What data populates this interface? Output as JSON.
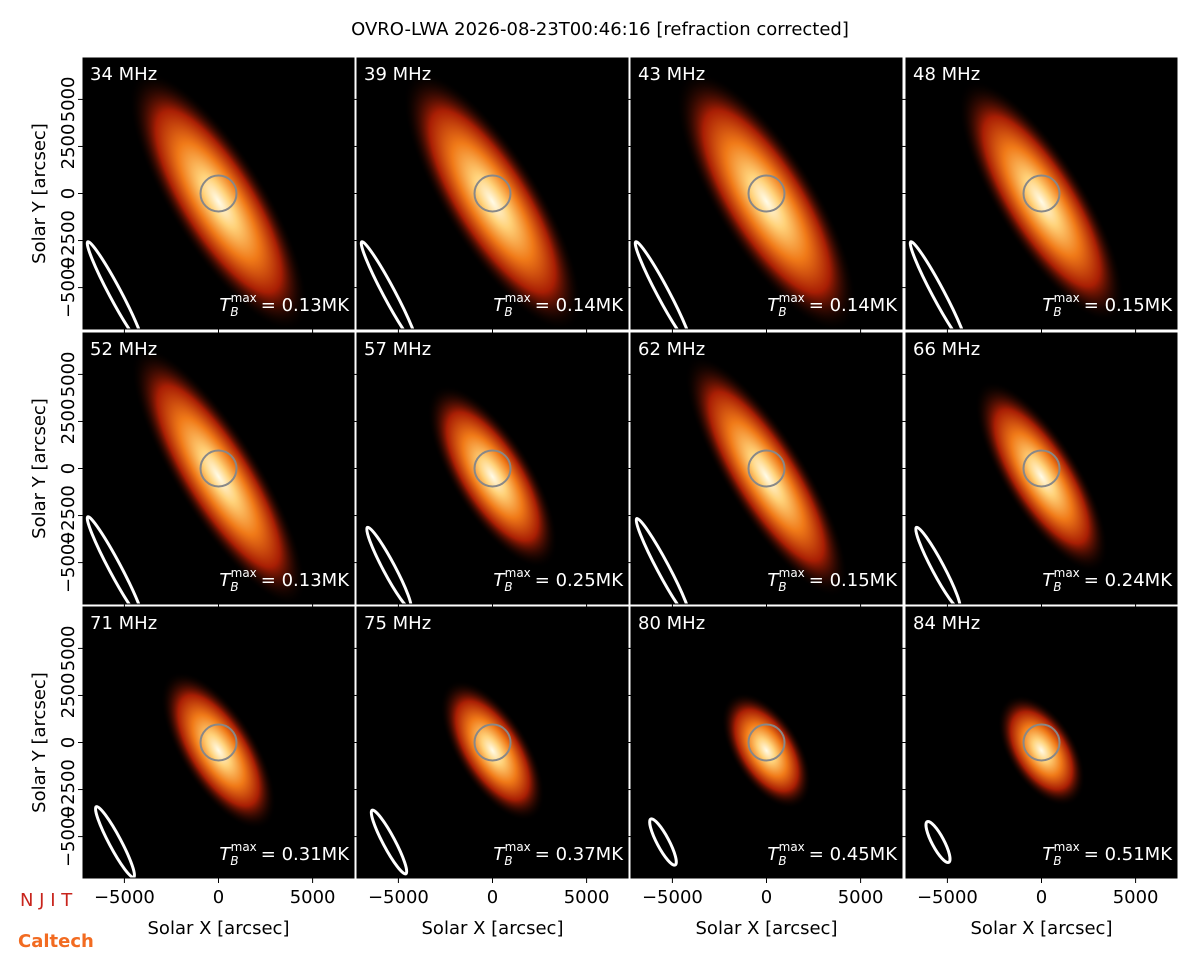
{
  "title": "OVRO-LWA 2026-08-23T00:46:16 [refraction corrected]",
  "axes": {
    "xlabel": "Solar X [arcsec]",
    "ylabel": "Solar Y [arcsec]",
    "xlim": [
      -7200,
      7200
    ],
    "ylim": [
      -7200,
      7200
    ],
    "xticks": [
      {
        "value": -5000,
        "label": "−5000"
      },
      0,
      5000
    ],
    "yticks": [
      {
        "value": -5000,
        "label": "−5000"
      },
      {
        "value": -2500,
        "label": "−2500"
      },
      0,
      2500,
      5000
    ]
  },
  "tb_symbol": {
    "base": "T",
    "sub": "B",
    "sup": "max"
  },
  "chart_data": [
    {
      "type": "image",
      "title": "34 MHz",
      "annotation": "= 0.13MK"
    },
    {
      "type": "image",
      "title": "39 MHz",
      "annotation": "= 0.14MK"
    },
    {
      "type": "image",
      "title": "43 MHz",
      "annotation": "= 0.14MK"
    },
    {
      "type": "image",
      "title": "48 MHz",
      "annotation": "= 0.15MK"
    },
    {
      "type": "image",
      "title": "52 MHz",
      "annotation": "= 0.13MK"
    },
    {
      "type": "image",
      "title": "57 MHz",
      "annotation": "= 0.25MK"
    },
    {
      "type": "image",
      "title": "62 MHz",
      "annotation": "= 0.15MK"
    },
    {
      "type": "image",
      "title": "66 MHz",
      "annotation": "= 0.24MK"
    },
    {
      "type": "image",
      "title": "71 MHz",
      "annotation": "= 0.31MK"
    },
    {
      "type": "image",
      "title": "75 MHz",
      "annotation": "= 0.37MK"
    },
    {
      "type": "image",
      "title": "80 MHz",
      "annotation": "= 0.45MK"
    },
    {
      "type": "image",
      "title": "84 MHz",
      "annotation": "= 0.51MK"
    }
  ],
  "logos": [
    "N J I T",
    "Caltech"
  ]
}
